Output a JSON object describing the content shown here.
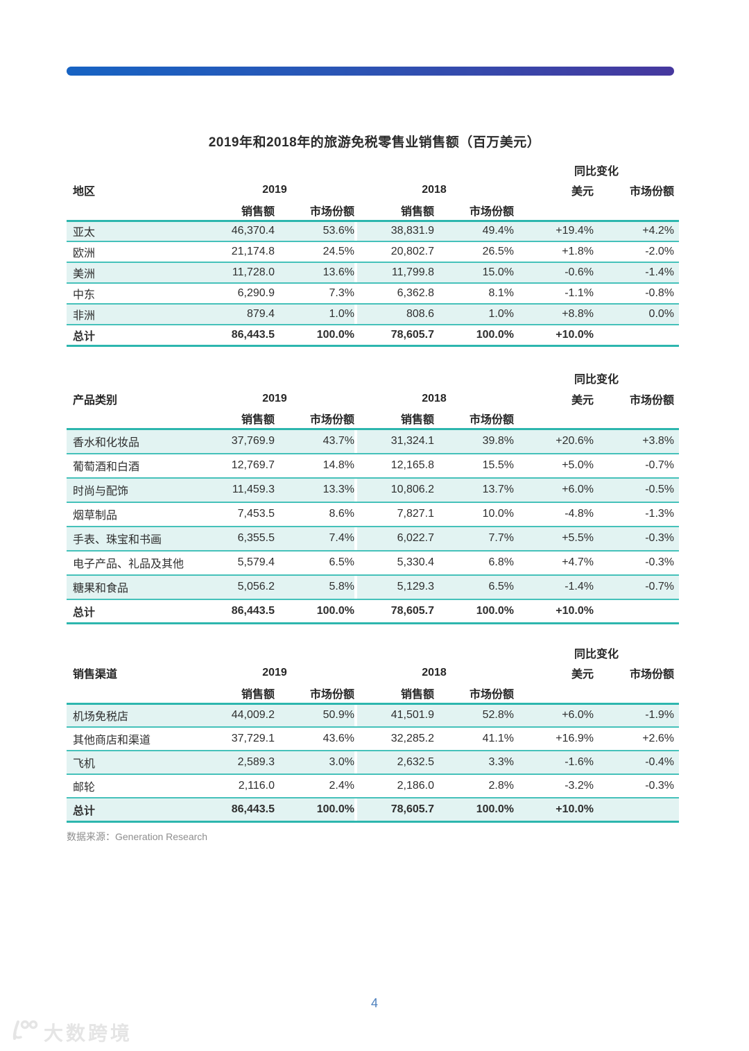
{
  "page": {
    "title": "2019年和2018年的旅游免税零售业销售额（百万美元）",
    "source_note": "数据来源：Generation Research",
    "page_number": "4",
    "watermark_text": "大数跨境"
  },
  "colors": {
    "bar_gradient_start": "#1763C3",
    "bar_gradient_end": "#46389E",
    "row_highlight_teal": "#E2F3F2",
    "table_line_teal": "#45C1BA",
    "table_line_strong_teal": "#2DB6AE",
    "page_number_blue": "#4D80BD"
  },
  "tables": [
    {
      "name": "regions",
      "label_header": "地区",
      "yoy_header": "同比变化",
      "year_2019": "2019",
      "year_2018": "2018",
      "col_usd": "美元",
      "col_share": "市场份额",
      "sub_sales_2019": "销售额",
      "sub_share_2019": "市场份额",
      "sub_sales_2018": "销售额",
      "sub_share_2018": "市场份额",
      "rows": [
        {
          "label": "亚太",
          "cells": [
            "46,370.4",
            "53.6%",
            "38,831.9",
            "49.4%",
            "+19.4%",
            "+4.2%"
          ]
        },
        {
          "label": "欧洲",
          "cells": [
            "21,174.8",
            "24.5%",
            "20,802.7",
            "26.5%",
            "+1.8%",
            "-2.0%"
          ]
        },
        {
          "label": "美洲",
          "cells": [
            "11,728.0",
            "13.6%",
            "11,799.8",
            "15.0%",
            "-0.6%",
            "-1.4%"
          ]
        },
        {
          "label": "中东",
          "cells": [
            "6,290.9",
            "7.3%",
            "6,362.8",
            "8.1%",
            "-1.1%",
            "-0.8%"
          ]
        },
        {
          "label": "非洲",
          "cells": [
            "879.4",
            "1.0%",
            "808.6",
            "1.0%",
            "+8.8%",
            "0.0%"
          ]
        },
        {
          "label": "总计",
          "cells": [
            "86,443.5",
            "100.0%",
            "78,605.7",
            "100.0%",
            "+10.0%",
            ""
          ],
          "total": true
        }
      ]
    },
    {
      "name": "product-categories",
      "label_header": "产品类别",
      "yoy_header": "同比变化",
      "year_2019": "2019",
      "year_2018": "2018",
      "col_usd": "美元",
      "col_share": "市场份额",
      "sub_sales_2019": "销售额",
      "sub_share_2019": "市场份额",
      "sub_sales_2018": "销售额",
      "sub_share_2018": "市场份额",
      "rows": [
        {
          "label": "香水和化妆品",
          "cells": [
            "37,769.9",
            "43.7%",
            "31,324.1",
            "39.8%",
            "+20.6%",
            "+3.8%"
          ]
        },
        {
          "label": "葡萄酒和白酒",
          "cells": [
            "12,769.7",
            "14.8%",
            "12,165.8",
            "15.5%",
            "+5.0%",
            "-0.7%"
          ]
        },
        {
          "label": "时尚与配饰",
          "cells": [
            "11,459.3",
            "13.3%",
            "10,806.2",
            "13.7%",
            "+6.0%",
            "-0.5%"
          ]
        },
        {
          "label": "烟草制品",
          "cells": [
            "7,453.5",
            "8.6%",
            "7,827.1",
            "10.0%",
            "-4.8%",
            "-1.3%"
          ]
        },
        {
          "label": "手表、珠宝和书画",
          "cells": [
            "6,355.5",
            "7.4%",
            "6,022.7",
            "7.7%",
            "+5.5%",
            "-0.3%"
          ]
        },
        {
          "label": "电子产品、礼品及其他",
          "cells": [
            "5,579.4",
            "6.5%",
            "5,330.4",
            "6.8%",
            "+4.7%",
            "-0.3%"
          ]
        },
        {
          "label": "糖果和食品",
          "cells": [
            "5,056.2",
            "5.8%",
            "5,129.3",
            "6.5%",
            "-1.4%",
            "-0.7%"
          ]
        },
        {
          "label": "总计",
          "cells": [
            "86,443.5",
            "100.0%",
            "78,605.7",
            "100.0%",
            "+10.0%",
            ""
          ],
          "total": true
        }
      ]
    },
    {
      "name": "sales-channels",
      "label_header": "销售渠道",
      "yoy_header": "同比变化",
      "year_2019": "2019",
      "year_2018": "2018",
      "col_usd": "美元",
      "col_share": "市场份额",
      "sub_sales_2019": "销售额",
      "sub_share_2019": "市场份额",
      "sub_sales_2018": "销售额",
      "sub_share_2018": "市场份额",
      "rows": [
        {
          "label": "机场免税店",
          "cells": [
            "44,009.2",
            "50.9%",
            "41,501.9",
            "52.8%",
            "+6.0%",
            "-1.9%"
          ]
        },
        {
          "label": "其他商店和渠道",
          "cells": [
            "37,729.1",
            "43.6%",
            "32,285.2",
            "41.1%",
            "+16.9%",
            "+2.6%"
          ]
        },
        {
          "label": "飞机",
          "cells": [
            "2,589.3",
            "3.0%",
            "2,632.5",
            "3.3%",
            "-1.6%",
            "-0.4%"
          ]
        },
        {
          "label": "邮轮",
          "cells": [
            "2,116.0",
            "2.4%",
            "2,186.0",
            "2.8%",
            "-3.2%",
            "-0.3%"
          ]
        },
        {
          "label": "总计",
          "cells": [
            "86,443.5",
            "100.0%",
            "78,605.7",
            "100.0%",
            "+10.0%",
            ""
          ],
          "total": true
        }
      ]
    }
  ]
}
